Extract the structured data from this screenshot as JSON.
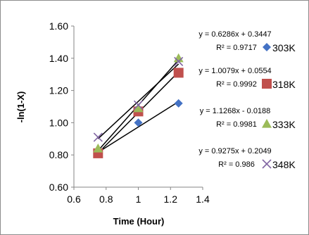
{
  "chart_data": {
    "type": "scatter",
    "xlabel": "Time (Hour)",
    "ylabel": "-ln(1-X)",
    "xlim": [
      0.6,
      1.4
    ],
    "ylim": [
      0.6,
      1.6
    ],
    "x_ticks": [
      "0.6",
      "0.8",
      "1",
      "1.2",
      "1.4"
    ],
    "y_ticks": [
      "0.60",
      "0.80",
      "1.00",
      "1.20",
      "1.40",
      "1.60"
    ],
    "x": [
      0.75,
      1.0,
      1.25
    ],
    "legend_position": "right",
    "series": [
      {
        "name": "303K",
        "marker": "diamond",
        "color": "#4472C4",
        "values": [
          0.81,
          1.0,
          1.12
        ],
        "equation": "y = 0.6286x + 0.3447",
        "r2": "R² = 0.9717"
      },
      {
        "name": "318K",
        "marker": "square",
        "color": "#C0504D",
        "values": [
          0.81,
          1.07,
          1.31
        ],
        "equation": "y = 1.0079x + 0.0554",
        "r2": "R² = 0.9992"
      },
      {
        "name": "333K",
        "marker": "triangle",
        "color": "#9BBB59",
        "values": [
          0.84,
          1.09,
          1.4
        ],
        "equation": "y = 1.1268x - 0.0188",
        "r2": "R² = 0.9981"
      },
      {
        "name": "348K",
        "marker": "x",
        "color": "#8064A2",
        "values": [
          0.91,
          1.11,
          1.38
        ],
        "equation": "y = 0.9275x + 0.2049",
        "r2": "R² = 0.986"
      }
    ]
  }
}
